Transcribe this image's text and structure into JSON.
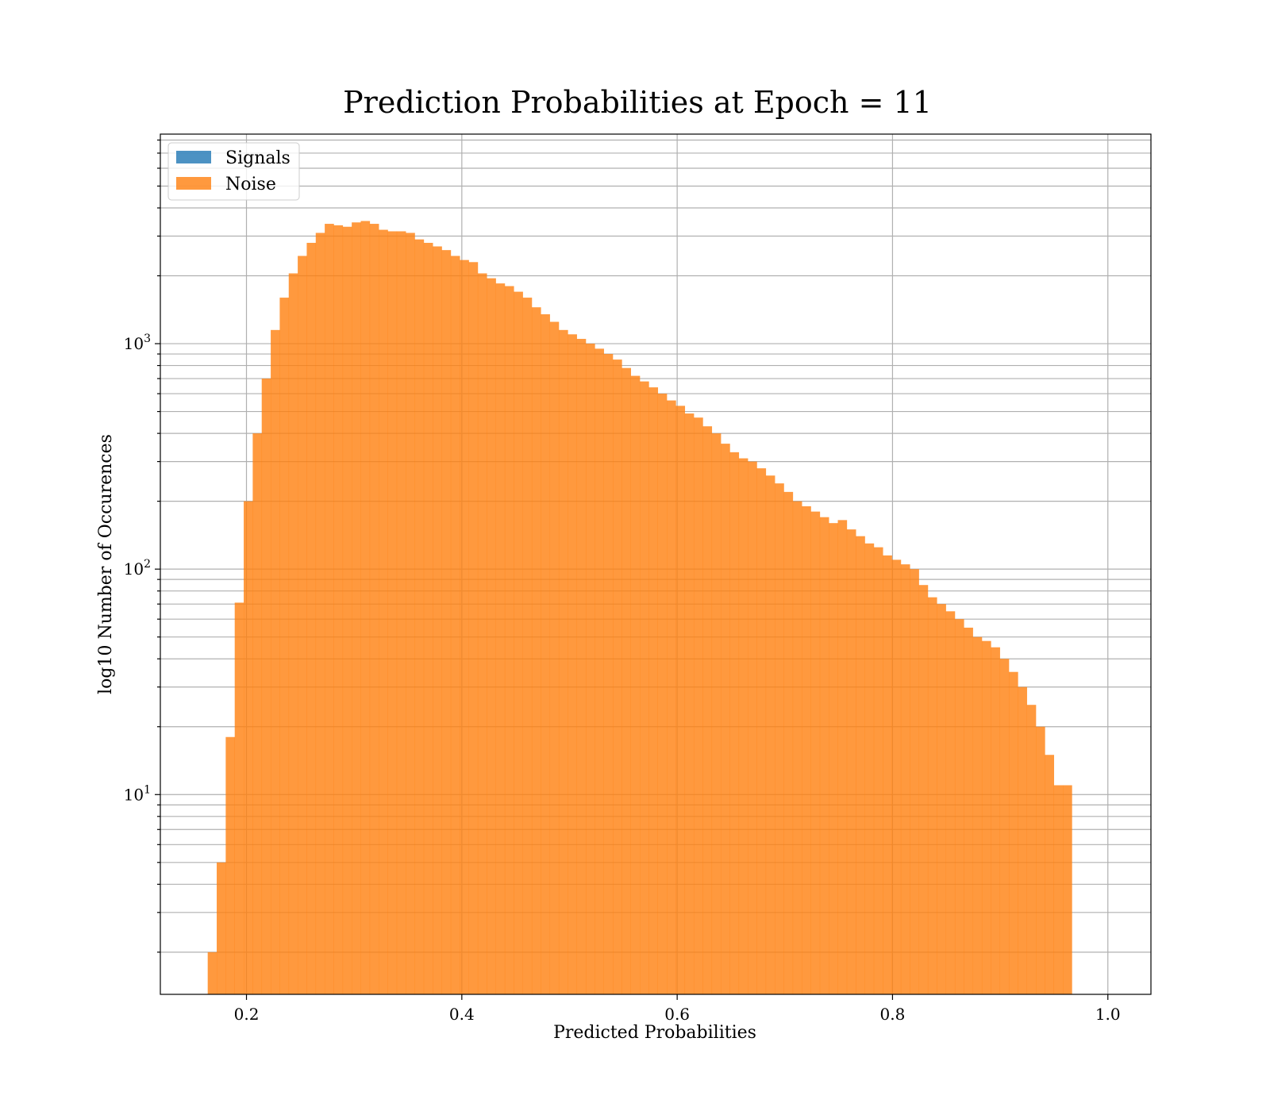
{
  "chart_data": {
    "type": "bar",
    "histogram": true,
    "title": "Prediction Probabilities at Epoch = 11",
    "xlabel": "Predicted Probabilities",
    "ylabel": "log10 Number of Occurences",
    "yscale": "log",
    "xlim": [
      0.12,
      1.04
    ],
    "ylim": [
      1.3,
      8500
    ],
    "xticks": [
      {
        "value": 0.2,
        "label": "0.2"
      },
      {
        "value": 0.4,
        "label": "0.4"
      },
      {
        "value": 0.6,
        "label": "0.6"
      },
      {
        "value": 0.8,
        "label": "0.8"
      },
      {
        "value": 1.0,
        "label": "1.0"
      }
    ],
    "yticks": [
      {
        "value": 10,
        "base": "10",
        "exp": "1"
      },
      {
        "value": 100,
        "base": "10",
        "exp": "2"
      },
      {
        "value": 1000,
        "base": "10",
        "exp": "3"
      }
    ],
    "grid": true,
    "legend_position": "top-left",
    "bin_start": 0.164,
    "bin_width": 0.00836,
    "series": [
      {
        "name": "Signals",
        "color": "#1f77b4",
        "alpha": 0.8,
        "values": [
          0,
          0,
          0,
          0,
          0,
          0,
          0,
          0,
          0,
          0,
          0,
          0,
          0,
          0,
          0,
          0,
          0,
          0,
          0,
          0,
          0,
          0,
          0,
          0,
          0,
          0,
          0,
          0,
          0,
          0,
          0,
          0,
          0,
          0,
          0,
          0,
          0,
          0,
          0,
          0,
          0,
          0,
          0,
          0,
          0,
          0,
          0,
          0,
          0,
          0,
          0,
          0,
          0,
          0,
          0,
          0,
          0,
          0,
          0,
          0,
          0,
          0,
          0,
          0,
          0,
          0,
          0,
          0,
          0,
          0,
          0,
          0,
          0,
          0,
          0,
          0,
          0,
          0,
          0,
          0,
          0,
          0,
          0,
          0,
          0,
          0,
          0,
          0,
          0,
          0,
          0,
          0,
          0,
          0,
          0,
          0,
          0,
          0,
          0,
          0
        ]
      },
      {
        "name": "Noise",
        "color": "#ff7f0e",
        "alpha": 0.8,
        "values": [
          2,
          5,
          18,
          71,
          200,
          400,
          700,
          1150,
          1600,
          2050,
          2450,
          2800,
          3100,
          3400,
          3350,
          3300,
          3450,
          3500,
          3400,
          3200,
          3150,
          3150,
          3100,
          2900,
          2800,
          2700,
          2600,
          2450,
          2350,
          2300,
          2050,
          1950,
          1850,
          1800,
          1700,
          1600,
          1450,
          1350,
          1250,
          1150,
          1100,
          1050,
          1000,
          950,
          900,
          850,
          780,
          720,
          680,
          640,
          600,
          560,
          530,
          490,
          470,
          430,
          400,
          360,
          330,
          310,
          300,
          280,
          260,
          240,
          220,
          200,
          190,
          180,
          170,
          160,
          165,
          150,
          140,
          130,
          125,
          115,
          110,
          105,
          100,
          85,
          75,
          70,
          65,
          60,
          55,
          50,
          48,
          45,
          40,
          35,
          30,
          25,
          20,
          15,
          11,
          11,
          0,
          0,
          0,
          0
        ]
      }
    ]
  }
}
